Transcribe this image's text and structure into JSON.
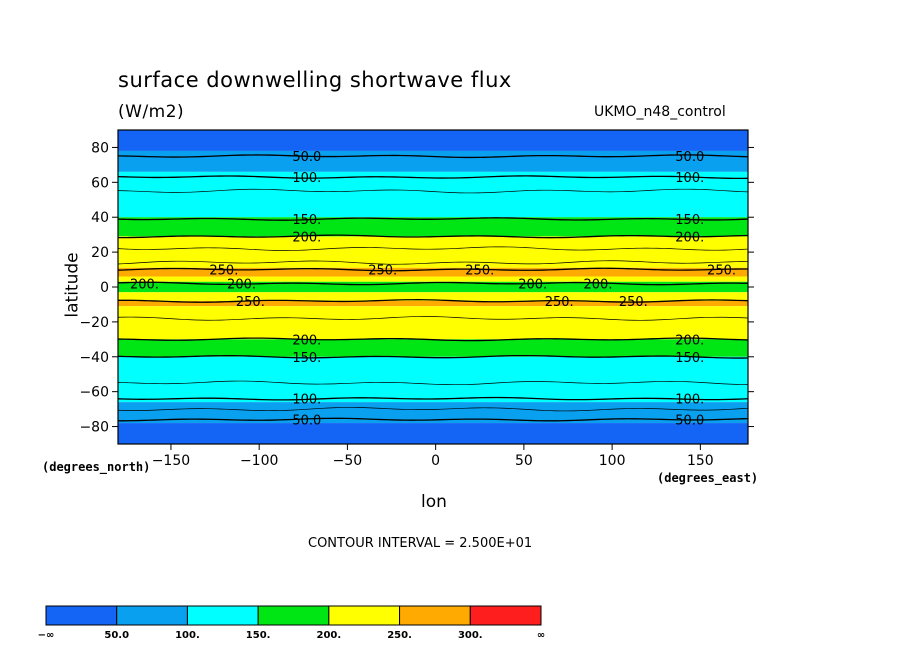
{
  "chart_data": {
    "type": "heatmap",
    "title": "surface downwelling shortwave flux",
    "units": "(W/m2)",
    "dataset": "UKMO_n48_control",
    "xlabel": "lon",
    "ylabel": "latitude",
    "x_units": "(degrees_east)",
    "y_units": "(degrees_north)",
    "xlim": [
      -180,
      177
    ],
    "ylim": [
      -90,
      90
    ],
    "x_ticks": [
      -150,
      -100,
      -50,
      0,
      50,
      100,
      150
    ],
    "x_tick_labels": [
      "−150",
      "−100",
      "−50",
      "0",
      "50",
      "100",
      "150"
    ],
    "y_ticks": [
      80,
      60,
      40,
      20,
      0,
      -20,
      -40,
      -60,
      -80
    ],
    "y_tick_labels": [
      "80",
      "60",
      "40",
      "20",
      "0",
      "−20",
      "−40",
      "−60",
      "−80"
    ],
    "contour_interval_text": "CONTOUR INTERVAL = 2.500E+01",
    "colorbar": {
      "boundaries": [
        "−∞",
        "50.0",
        "100.",
        "150.",
        "200.",
        "250.",
        "300.",
        "∞"
      ],
      "colors": [
        "#1464f5",
        "#0aa0f0",
        "#00ffff",
        "#00e614",
        "#ffff00",
        "#ffaa00",
        "#ff1e1e"
      ]
    },
    "bands": [
      {
        "lat_top": 90,
        "lat_bottom": 78,
        "level": 0
      },
      {
        "lat_top": 78,
        "lat_bottom": 66,
        "level": 1
      },
      {
        "lat_top": 66,
        "lat_bottom": 40,
        "level": 2
      },
      {
        "lat_top": 40,
        "lat_bottom": 29,
        "level": 3
      },
      {
        "lat_top": 29,
        "lat_bottom": 11,
        "level": 4
      },
      {
        "lat_top": 11,
        "lat_bottom": 6,
        "level": 5
      },
      {
        "lat_top": 6,
        "lat_bottom": 3,
        "level": 4
      },
      {
        "lat_top": 3,
        "lat_bottom": -3,
        "level": 3
      },
      {
        "lat_top": -3,
        "lat_bottom": -8,
        "level": 4
      },
      {
        "lat_top": -8,
        "lat_bottom": -11,
        "level": 5
      },
      {
        "lat_top": -11,
        "lat_bottom": -30,
        "level": 4
      },
      {
        "lat_top": -30,
        "lat_bottom": -40,
        "level": 3
      },
      {
        "lat_top": -40,
        "lat_bottom": -66,
        "level": 2
      },
      {
        "lat_top": -66,
        "lat_bottom": -78,
        "level": 1
      },
      {
        "lat_top": -78,
        "lat_bottom": -90,
        "level": 0
      }
    ],
    "contours": [
      {
        "lat": 75,
        "label": "50.0",
        "label_lons": [
          -73,
          144
        ]
      },
      {
        "lat": 63,
        "label": "100.",
        "label_lons": [
          -73,
          144
        ]
      },
      {
        "lat": 39,
        "label": "150.",
        "label_lons": [
          -73,
          144
        ]
      },
      {
        "lat": 29,
        "label": "200.",
        "label_lons": [
          -73,
          144
        ]
      },
      {
        "lat": 10,
        "label": "250.",
        "label_lons": [
          -120,
          -30,
          25,
          162
        ]
      },
      {
        "lat": 2,
        "label": "200.",
        "label_lons": [
          -165,
          -110,
          55,
          92
        ]
      },
      {
        "lat": -8,
        "label": "250.",
        "label_lons": [
          -105,
          70,
          112
        ]
      },
      {
        "lat": -30,
        "label": "200.",
        "label_lons": [
          -73,
          144
        ]
      },
      {
        "lat": -40,
        "label": "150.",
        "label_lons": [
          -73,
          144
        ]
      },
      {
        "lat": -64,
        "label": "100.",
        "label_lons": [
          -73,
          144
        ]
      },
      {
        "lat": -76,
        "label": "50.0",
        "label_lons": [
          -73,
          144
        ]
      }
    ],
    "thin_contours": [
      55,
      22,
      14,
      -18,
      -55,
      -70
    ]
  }
}
